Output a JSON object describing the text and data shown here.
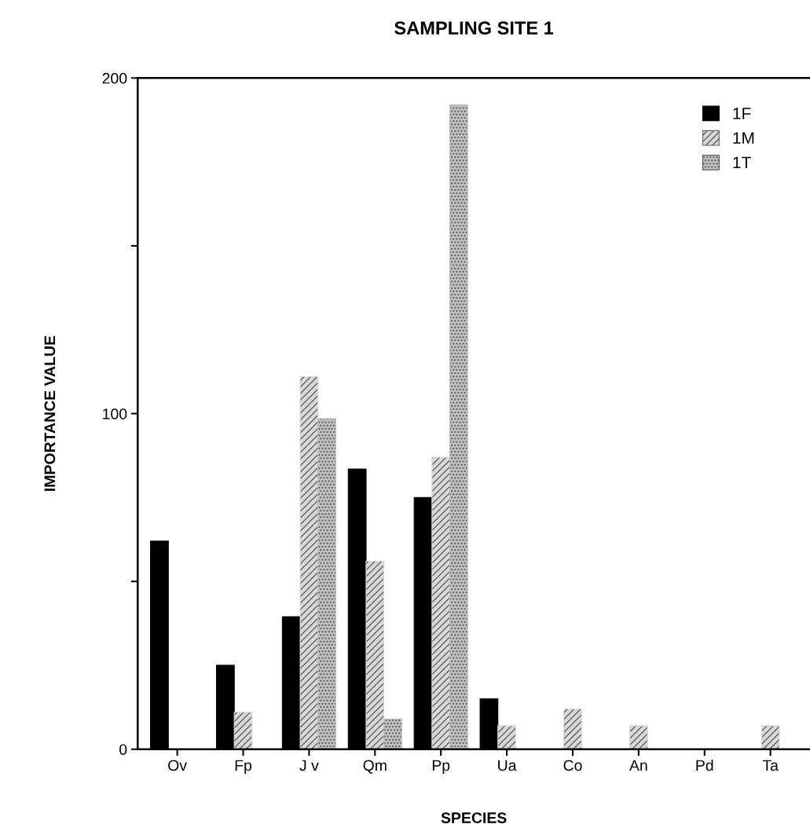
{
  "chart_data": {
    "type": "bar",
    "title": "SAMPLING SITE 1",
    "xlabel": "SPECIES",
    "ylabel": "IMPORTANCE VALUE",
    "categories": [
      "Ov",
      "Fp",
      "J v",
      "Qm",
      "Pp",
      "Ua",
      "Co",
      "An",
      "Pd",
      "Ta"
    ],
    "series": [
      {
        "name": "1F",
        "color": "#000000",
        "values": [
          62,
          25,
          39.5,
          83.5,
          75,
          15,
          null,
          null,
          null,
          null
        ]
      },
      {
        "name": "1M",
        "color": "#d9d9d9",
        "values": [
          null,
          11,
          111,
          56,
          87,
          7,
          12,
          7,
          null,
          7
        ]
      },
      {
        "name": "1T",
        "color": "#bfbfbf",
        "values": [
          null,
          null,
          98.5,
          9,
          192,
          null,
          null,
          null,
          null,
          null
        ]
      }
    ],
    "ylim": [
      0,
      200
    ],
    "yticks": [
      0,
      {
        "value": 50,
        "label": null
      },
      100,
      {
        "value": 150,
        "label": null
      },
      200
    ],
    "grid": false,
    "legend": "top right"
  }
}
